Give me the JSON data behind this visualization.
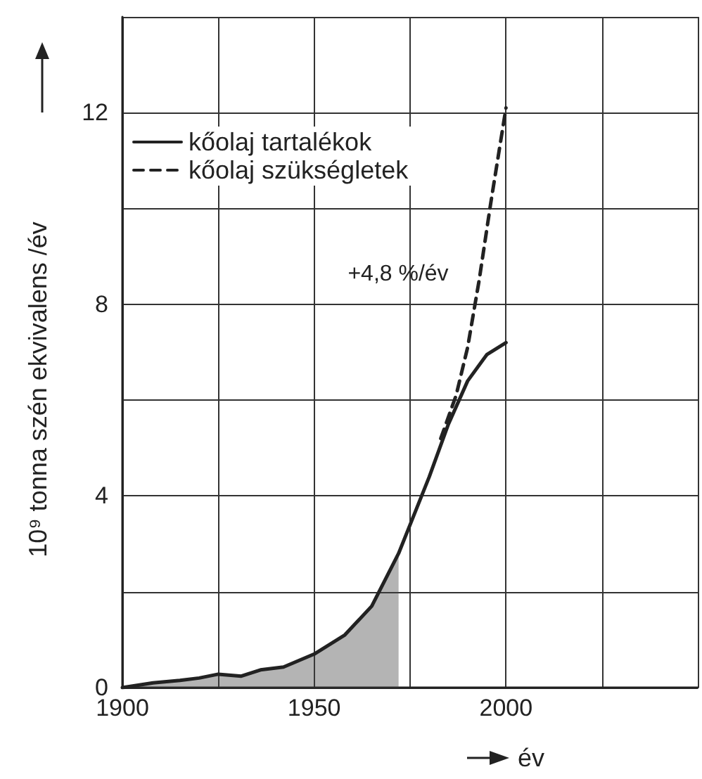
{
  "chart_data": {
    "type": "line",
    "xlabel": "év",
    "ylabel": "10⁹ tonna szén ekvivalens /év",
    "xlim": [
      1900,
      2050
    ],
    "xticks": [
      1900,
      {
        "value": 1925,
        "label": null
      },
      1950,
      {
        "value": 1975,
        "label": null
      },
      2000,
      {
        "value": 2025,
        "label": null
      },
      {
        "value": 2050,
        "label": null
      }
    ],
    "ylim": [
      0,
      14
    ],
    "yticks": [
      0,
      {
        "value": 2,
        "label": null
      },
      4,
      {
        "value": 6,
        "label": null
      },
      8,
      {
        "value": 10,
        "label": null
      },
      12,
      {
        "value": 14,
        "label": null
      }
    ],
    "grid": true,
    "legend": "top left",
    "marker": "none",
    "series": [
      {
        "type": "area",
        "color": "#444444",
        "x": [
          1900,
          1908,
          1915,
          1920,
          1925,
          1931,
          1936,
          1942,
          1950,
          1958,
          1965,
          1972
        ],
        "values": [
          0,
          0.1,
          0.15,
          0.2,
          0.28,
          0.24,
          0.37,
          0.43,
          0.7,
          1.1,
          1.7,
          2.8
        ]
      },
      {
        "name": "kőolaj tartalékok",
        "color": "#222222",
        "line_style": "solid",
        "x": [
          1900,
          1908,
          1915,
          1920,
          1925,
          1931,
          1936,
          1942,
          1950,
          1958,
          1965,
          1972,
          1975,
          1980,
          1985,
          1990,
          1995,
          2000
        ],
        "values": [
          0,
          0.1,
          0.15,
          0.2,
          0.28,
          0.24,
          0.37,
          0.43,
          0.7,
          1.1,
          1.7,
          2.8,
          3.4,
          4.4,
          5.5,
          6.4,
          6.95,
          7.2
        ]
      },
      {
        "name": "kőolaj szükségletek",
        "color": "#222222",
        "line_style": "dashed",
        "x": [
          1983,
          1987,
          1990,
          1993,
          1996,
          2000
        ],
        "values": [
          5.2,
          6.1,
          7.1,
          8.5,
          10.1,
          12.1
        ]
      }
    ],
    "annotations": [
      "+4,8 %/év"
    ]
  }
}
